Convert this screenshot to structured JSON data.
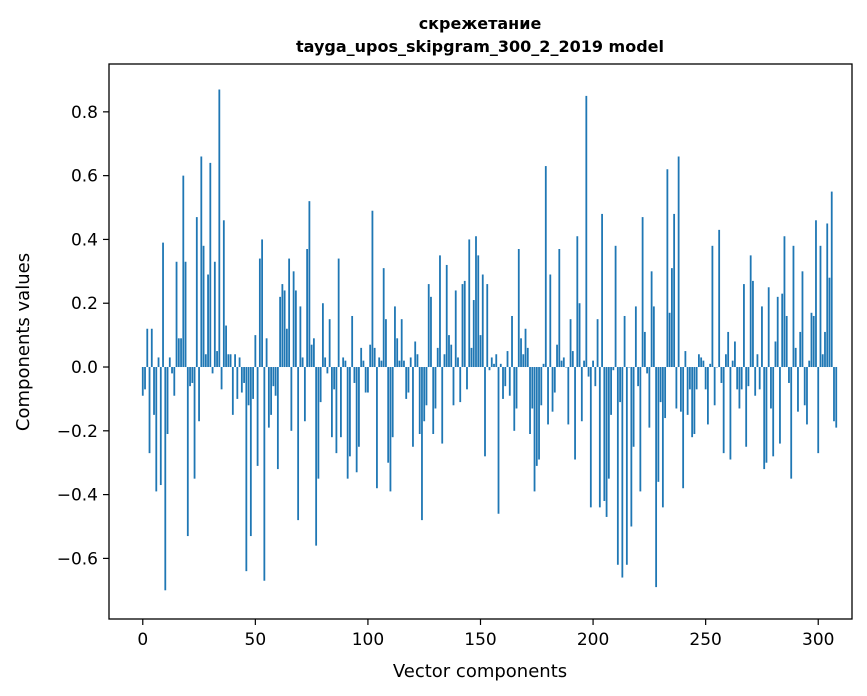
{
  "chart_data": {
    "type": "bar",
    "title": "скрежетание",
    "subtitle": "tayga_upos_skipgram_300_2_2019 model",
    "xlabel": "Vector components",
    "ylabel": "Components values",
    "xlim": [
      -15,
      315
    ],
    "ylim": [
      -0.79,
      0.95
    ],
    "xticks": [
      0,
      50,
      100,
      150,
      200,
      250,
      300
    ],
    "yticks": [
      -0.6,
      -0.4,
      -0.2,
      0.0,
      0.2,
      0.4,
      0.6,
      0.8
    ],
    "ytick_labels": [
      "−0.6",
      "−0.4",
      "−0.2",
      "0.0",
      "0.2",
      "0.4",
      "0.6",
      "0.8"
    ],
    "grid": false,
    "bar_color": "#1f77b4",
    "values": [
      -0.09,
      -0.07,
      0.12,
      -0.27,
      0.12,
      -0.15,
      -0.39,
      0.03,
      -0.37,
      0.39,
      -0.7,
      -0.21,
      0.03,
      -0.02,
      -0.09,
      0.33,
      0.09,
      0.09,
      0.6,
      0.33,
      -0.53,
      -0.06,
      -0.05,
      -0.35,
      0.47,
      -0.17,
      0.66,
      0.38,
      0.04,
      0.29,
      0.64,
      -0.02,
      0.33,
      0.05,
      0.87,
      -0.07,
      0.46,
      0.13,
      0.04,
      0.04,
      -0.15,
      0.04,
      -0.1,
      0.03,
      -0.08,
      -0.05,
      -0.64,
      -0.12,
      -0.53,
      -0.1,
      0.1,
      -0.31,
      0.34,
      0.4,
      -0.67,
      0.09,
      -0.19,
      -0.15,
      -0.06,
      -0.09,
      -0.32,
      0.22,
      0.26,
      0.24,
      0.12,
      0.34,
      -0.2,
      0.3,
      0.24,
      -0.48,
      0.19,
      0.03,
      -0.17,
      0.37,
      0.52,
      0.07,
      0.09,
      -0.56,
      -0.35,
      -0.11,
      0.2,
      0.03,
      -0.02,
      0.15,
      -0.22,
      -0.07,
      -0.27,
      0.34,
      -0.22,
      0.03,
      0.02,
      -0.35,
      -0.28,
      0.16,
      -0.05,
      -0.33,
      -0.25,
      0.06,
      0.02,
      -0.08,
      -0.08,
      0.07,
      0.49,
      0.06,
      -0.38,
      0.03,
      0.02,
      0.31,
      0.15,
      -0.3,
      -0.39,
      -0.22,
      0.19,
      0.09,
      0.02,
      0.15,
      0.02,
      -0.1,
      -0.08,
      0.03,
      -0.25,
      0.08,
      0.04,
      -0.21,
      -0.48,
      -0.17,
      -0.12,
      0.26,
      0.22,
      -0.21,
      -0.13,
      0.06,
      0.35,
      -0.24,
      0.04,
      0.32,
      0.1,
      0.07,
      -0.12,
      0.24,
      0.03,
      -0.11,
      0.26,
      0.27,
      -0.07,
      0.4,
      0.06,
      0.21,
      0.41,
      0.35,
      0.1,
      0.29,
      -0.28,
      0.26,
      -0.01,
      0.03,
      0.01,
      0.04,
      -0.46,
      0.01,
      -0.1,
      -0.06,
      0.05,
      -0.09,
      0.16,
      -0.2,
      -0.13,
      0.37,
      0.09,
      0.04,
      0.12,
      0.06,
      -0.21,
      -0.13,
      -0.39,
      -0.31,
      -0.29,
      -0.12,
      0.01,
      0.63,
      -0.18,
      0.29,
      -0.14,
      -0.08,
      0.07,
      0.37,
      0.02,
      0.03,
      0.0,
      -0.18,
      0.15,
      0.05,
      -0.29,
      0.41,
      0.2,
      -0.17,
      0.02,
      0.85,
      -0.03,
      -0.44,
      0.02,
      -0.06,
      0.15,
      -0.44,
      0.48,
      -0.42,
      -0.47,
      -0.35,
      -0.15,
      -0.01,
      0.38,
      -0.62,
      -0.11,
      -0.66,
      0.16,
      -0.62,
      0.0,
      -0.5,
      -0.25,
      0.19,
      -0.06,
      -0.39,
      0.47,
      0.11,
      -0.02,
      -0.19,
      0.3,
      0.19,
      -0.69,
      -0.36,
      -0.11,
      -0.44,
      -0.16,
      0.62,
      0.17,
      0.31,
      0.48,
      -0.13,
      0.66,
      -0.14,
      -0.38,
      0.05,
      -0.15,
      -0.07,
      -0.22,
      -0.21,
      -0.07,
      0.04,
      0.03,
      0.02,
      -0.07,
      -0.18,
      0.01,
      0.38,
      -0.12,
      0.0,
      0.43,
      -0.05,
      -0.27,
      0.04,
      0.11,
      -0.29,
      0.02,
      0.08,
      -0.07,
      -0.13,
      -0.07,
      0.26,
      -0.25,
      -0.06,
      0.35,
      0.27,
      -0.09,
      0.04,
      -0.07,
      0.19,
      -0.32,
      -0.3,
      0.25,
      -0.13,
      -0.28,
      0.08,
      0.22,
      -0.24,
      0.23,
      0.41,
      0.16,
      -0.05,
      -0.35,
      0.38,
      0.06,
      -0.14,
      0.11,
      0.3,
      -0.12,
      -0.18,
      0.02,
      0.17,
      0.16,
      0.46,
      -0.27,
      0.38,
      0.04,
      0.11,
      0.45,
      0.28,
      0.55,
      -0.17,
      -0.19
    ]
  }
}
